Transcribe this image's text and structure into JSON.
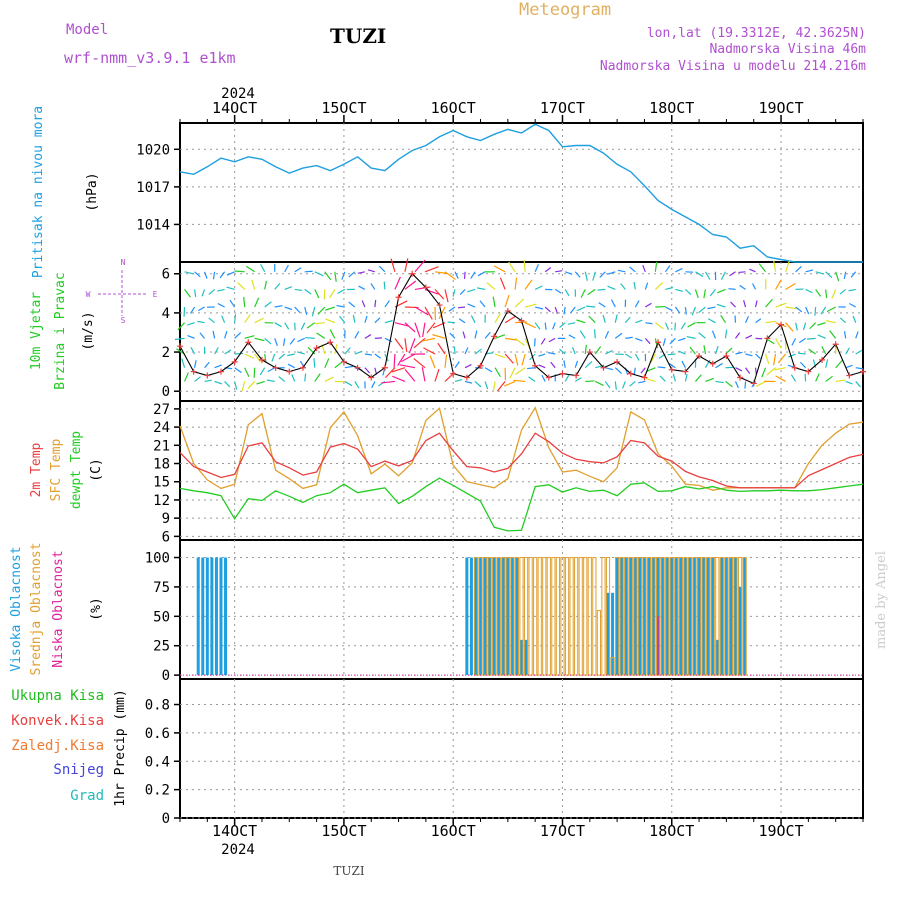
{
  "header": {
    "model_label": "Model",
    "model_name": "wrf-nmm_v3.9.1 e1km",
    "station": "TUZI",
    "product": "Meteogram",
    "coords": "lon,lat (19.3312E, 42.3625N)",
    "elev": "Nadmorska Visina 46m",
    "elev_model": "Nadmorska Visina u modelu 214.216m"
  },
  "footer": {
    "station": "TUZI",
    "credit": "made by Angel"
  },
  "colors": {
    "pressure": "#1e9fe0",
    "temp2m": "#e84040",
    "sfc": "#e0a030",
    "dewpt": "#22cc22",
    "high_cloud": "#1e9fe0",
    "mid_cloud": "#e0a030",
    "low_cloud": "#e0209c",
    "total_precip": "#22bb22",
    "conv_precip": "#e84040",
    "frozen": "#f07a30",
    "snow": "#4444dd",
    "hail": "#22bbbb",
    "wind_labels": "#b050d0"
  },
  "chart_data": {
    "type": "meteogram",
    "x_axis": {
      "year_label": "2024",
      "start": "2024-10-13 12:00",
      "end": "2024-10-19 18:00",
      "tick_labels": [
        "14OCT",
        "15OCT",
        "16OCT",
        "17OCT",
        "18OCT",
        "19OCT"
      ]
    },
    "panels": [
      {
        "id": "pressure",
        "ylabel": "Pritisak na nivou mora",
        "units": "(hPa)",
        "ticks": [
          1014,
          1017,
          1020
        ],
        "ylim": [
          1011.0,
          1022.1
        ],
        "series": [
          {
            "name": "pressure",
            "x_hours": [
              0,
              3,
              6,
              9,
              12,
              15,
              18,
              21,
              24,
              27,
              30,
              33,
              36,
              39,
              42,
              45,
              48,
              51,
              54,
              57,
              60,
              63,
              66,
              69,
              72,
              75,
              78,
              81,
              84,
              87,
              90,
              93,
              96,
              99,
              102,
              105,
              108,
              111,
              114,
              117,
              120,
              123,
              126,
              129,
              132,
              135,
              138,
              141,
              144,
              147,
              150
            ],
            "values": [
              1018.2,
              1018.0,
              1018.6,
              1019.3,
              1019.0,
              1019.4,
              1019.2,
              1018.6,
              1018.1,
              1018.5,
              1018.7,
              1018.3,
              1018.8,
              1019.4,
              1018.5,
              1018.3,
              1019.2,
              1019.9,
              1020.3,
              1021.0,
              1021.5,
              1021.0,
              1020.7,
              1021.2,
              1021.6,
              1021.3,
              1022.0,
              1021.5,
              1020.2,
              1020.3,
              1020.3,
              1019.7,
              1018.8,
              1018.2,
              1017.1,
              1015.9,
              1015.2,
              1014.6,
              1014.0,
              1013.2,
              1013.0,
              1012.1,
              1012.3,
              1011.4,
              1011.2,
              1011.0,
              1011.0,
              1011.0,
              1011.0,
              1011.0,
              1011.0
            ]
          }
        ]
      },
      {
        "id": "wind",
        "ylabel": [
          "10m Vjetar",
          "Brzina i Pravac"
        ],
        "units": "(m/s)",
        "compass": [
          "N",
          "W",
          "E",
          "S"
        ],
        "ticks": [
          0,
          2,
          4,
          6
        ],
        "ylim": [
          -0.5,
          6.6
        ],
        "speed": {
          "x_hours": [
            0,
            3,
            6,
            9,
            12,
            15,
            18,
            21,
            24,
            27,
            30,
            33,
            36,
            39,
            42,
            45,
            48,
            51,
            54,
            57,
            60,
            63,
            66,
            69,
            72,
            75,
            78,
            81,
            84,
            87,
            90,
            93,
            96,
            99,
            102,
            105,
            108,
            111,
            114,
            117,
            120,
            123,
            126,
            129,
            132,
            135,
            138,
            141,
            144,
            147,
            150
          ],
          "values": [
            2.3,
            1.0,
            0.8,
            1.0,
            1.5,
            2.5,
            1.6,
            1.2,
            1.0,
            1.2,
            2.2,
            2.5,
            1.5,
            1.2,
            0.7,
            1.2,
            4.8,
            6.0,
            5.3,
            4.4,
            0.9,
            0.7,
            1.3,
            2.8,
            4.1,
            3.6,
            1.3,
            0.7,
            0.9,
            0.8,
            2.0,
            1.2,
            1.5,
            0.9,
            0.7,
            2.5,
            1.1,
            1.0,
            1.8,
            1.4,
            1.8,
            0.7,
            0.4,
            2.7,
            3.4,
            1.2,
            1.0,
            1.6,
            2.4,
            0.8,
            1.0
          ]
        },
        "arrow_rows": [
          6.1,
          5.2,
          4.3,
          3.5,
          2.7,
          1.9,
          1.2,
          0.5
        ]
      },
      {
        "id": "temperature",
        "ylabel": [
          "2m Temp",
          "SFC Temp",
          "dewpt Temp"
        ],
        "units": "(C)",
        "ticks": [
          6,
          9,
          12,
          15,
          18,
          21,
          24,
          27
        ],
        "ylim": [
          5.4,
          28.3
        ],
        "series": [
          {
            "name": "2m Temp",
            "x_hours": [
              0,
              3,
              6,
              9,
              12,
              15,
              18,
              21,
              24,
              27,
              30,
              33,
              36,
              39,
              42,
              45,
              48,
              51,
              54,
              57,
              60,
              63,
              66,
              69,
              72,
              75,
              78,
              81,
              84,
              87,
              90,
              93,
              96,
              99,
              102,
              105,
              108,
              111,
              114,
              117,
              120,
              123,
              126,
              129,
              132,
              135,
              138,
              141,
              144,
              147,
              150
            ],
            "values": [
              19.8,
              17.5,
              16.6,
              15.7,
              16.2,
              20.9,
              21.4,
              18.3,
              17.3,
              16.1,
              16.6,
              20.7,
              21.3,
              20.4,
              17.5,
              18.4,
              17.6,
              18.5,
              21.8,
              23.0,
              20.1,
              17.5,
              17.3,
              16.6,
              17.2,
              19.6,
              23.0,
              21.6,
              19.7,
              18.7,
              18.3,
              18.1,
              19.1,
              21.8,
              21.4,
              19.2,
              18.4,
              16.7,
              15.8,
              15.2,
              14.3,
              14.0,
              14.0,
              14.0,
              14.0,
              14.0,
              16.0,
              17.0,
              18.0,
              19.0,
              19.5
            ]
          },
          {
            "name": "SFC Temp",
            "x_hours": [
              0,
              3,
              6,
              9,
              12,
              15,
              18,
              21,
              24,
              27,
              30,
              33,
              36,
              39,
              42,
              45,
              48,
              51,
              54,
              57,
              60,
              63,
              66,
              69,
              72,
              75,
              78,
              81,
              84,
              87,
              90,
              93,
              96,
              99,
              102,
              105,
              108,
              111,
              114,
              117,
              120,
              123,
              126,
              129,
              132,
              135,
              138,
              141,
              144,
              147,
              150
            ],
            "values": [
              24.2,
              18.0,
              15.3,
              13.9,
              14.6,
              24.4,
              26.2,
              16.9,
              15.5,
              13.9,
              14.5,
              23.9,
              26.5,
              22.6,
              16.3,
              17.9,
              16.0,
              18.1,
              25.1,
              27.1,
              17.7,
              15.0,
              14.5,
              14.0,
              15.5,
              23.5,
              27.2,
              20.6,
              16.6,
              16.9,
              15.9,
              15.0,
              17.3,
              26.5,
              25.2,
              19.6,
              17.6,
              14.6,
              14.4,
              13.6,
              14.0,
              14.0,
              14.0,
              14.0,
              14.0,
              14.0,
              18.0,
              21.0,
              23.0,
              24.5,
              24.8
            ]
          },
          {
            "name": "dewpt Temp",
            "x_hours": [
              0,
              3,
              6,
              9,
              12,
              15,
              18,
              21,
              24,
              27,
              30,
              33,
              36,
              39,
              42,
              45,
              48,
              51,
              54,
              57,
              60,
              63,
              66,
              69,
              72,
              75,
              78,
              81,
              84,
              87,
              90,
              93,
              96,
              99,
              102,
              105,
              108,
              111,
              114,
              117,
              120,
              123,
              126,
              129,
              132,
              135,
              138,
              141,
              144,
              147,
              150
            ],
            "values": [
              13.9,
              13.5,
              13.2,
              12.7,
              8.9,
              12.2,
              11.9,
              13.5,
              12.6,
              11.6,
              12.7,
              13.2,
              14.6,
              13.2,
              13.6,
              14.0,
              11.4,
              12.6,
              14.2,
              15.6,
              14.4,
              13.1,
              11.8,
              7.5,
              6.9,
              7.0,
              14.2,
              14.5,
              13.3,
              14.0,
              13.4,
              13.6,
              12.7,
              14.6,
              14.8,
              13.4,
              13.5,
              14.2,
              13.8,
              14.2,
              13.6,
              13.4,
              13.5,
              13.5,
              13.6,
              13.5,
              13.5,
              13.7,
              14.0,
              14.3,
              14.6
            ]
          }
        ]
      },
      {
        "id": "cloud",
        "ylabel": [
          "Visoka Oblacnost",
          "Srednja Oblacnost",
          "Niska Oblacnost"
        ],
        "units": "(%)",
        "ticks": [
          0,
          25,
          50,
          75,
          100
        ],
        "ylim": [
          -3.3,
          114.9
        ],
        "high": {
          "x_hours": [
            4,
            5,
            6,
            7,
            8,
            9,
            10,
            63,
            64,
            65,
            66,
            67,
            68,
            69,
            70,
            71,
            72,
            73,
            74,
            75,
            76,
            94,
            95,
            96,
            97,
            98,
            99,
            100,
            101,
            102,
            103,
            104,
            105,
            106,
            107,
            108,
            109,
            110,
            111,
            112,
            113,
            114,
            115,
            116,
            117,
            118,
            119,
            120,
            121,
            122,
            123,
            124
          ],
          "values": [
            100,
            100,
            100,
            100,
            100,
            100,
            100,
            100,
            100,
            100,
            100,
            100,
            100,
            100,
            100,
            100,
            100,
            100,
            100,
            30,
            30,
            70,
            70,
            100,
            100,
            100,
            100,
            100,
            100,
            100,
            100,
            100,
            100,
            100,
            100,
            100,
            100,
            100,
            100,
            100,
            100,
            100,
            100,
            100,
            100,
            30,
            100,
            100,
            100,
            100,
            75,
            100
          ]
        },
        "mid": {
          "x_hours": [
            65,
            66,
            67,
            68,
            69,
            70,
            71,
            72,
            73,
            74,
            75,
            76,
            77,
            78,
            79,
            80,
            81,
            82,
            83,
            84,
            85,
            86,
            87,
            88,
            89,
            90,
            91,
            92,
            93,
            94,
            95,
            96,
            97,
            98,
            99,
            100,
            101,
            102,
            103,
            104,
            105,
            106,
            107,
            108,
            109,
            110,
            111,
            112,
            113,
            114,
            115,
            116,
            117,
            118,
            119,
            120,
            121,
            122,
            123,
            124
          ],
          "values": [
            100,
            100,
            100,
            100,
            100,
            100,
            100,
            100,
            100,
            100,
            100,
            100,
            100,
            100,
            100,
            100,
            100,
            100,
            100,
            100,
            100,
            100,
            100,
            100,
            100,
            100,
            100,
            55,
            100,
            100,
            15,
            100,
            100,
            100,
            100,
            100,
            100,
            100,
            100,
            100,
            100,
            100,
            100,
            100,
            100,
            100,
            100,
            100,
            100,
            100,
            100,
            100,
            100,
            100,
            100,
            100,
            100,
            100,
            100,
            100
          ]
        },
        "low": {
          "x_hours": [
            105
          ],
          "values": [
            50
          ]
        }
      },
      {
        "id": "precip",
        "units": "1hr Precip (mm)",
        "legend": [
          "Ukupna Kisa",
          "Konvek.Kisa",
          "Zaledj.Kisa",
          "Snijeg",
          "Grad"
        ],
        "ticks": [
          0,
          0.2,
          0.4,
          0.6,
          0.8
        ],
        "ylim": [
          0,
          0.98
        ],
        "series": []
      }
    ]
  }
}
